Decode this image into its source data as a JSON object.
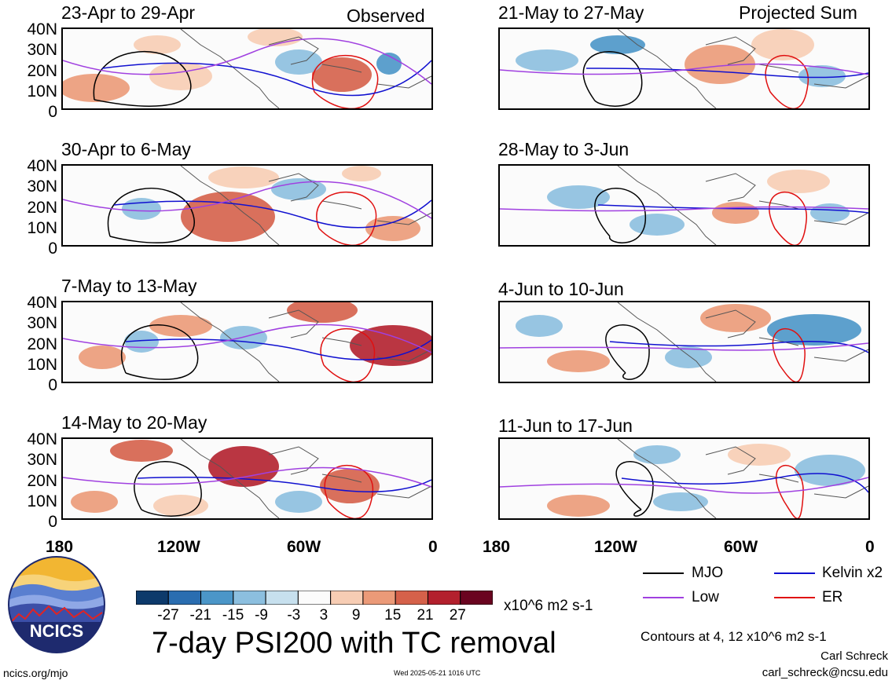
{
  "header": {
    "observed_label": "Observed",
    "projected_label": "Projected Sum"
  },
  "panels_left": [
    {
      "title": "23-Apr to 29-Apr"
    },
    {
      "title": "30-Apr to 6-May"
    },
    {
      "title": "7-May to 13-May"
    },
    {
      "title": "14-May to 20-May"
    }
  ],
  "panels_right": [
    {
      "title": "21-May to 27-May"
    },
    {
      "title": "28-May to 3-Jun"
    },
    {
      "title": "4-Jun to 10-Jun"
    },
    {
      "title": "11-Jun to 17-Jun"
    }
  ],
  "y_ticks": [
    "40N",
    "30N",
    "20N",
    "10N",
    "0"
  ],
  "x_ticks": [
    "180",
    "120W",
    "60W",
    "0"
  ],
  "colorbar": {
    "labels": [
      "-27",
      "-21",
      "-15",
      "-9",
      "-3",
      "3",
      "9",
      "15",
      "21",
      "27"
    ],
    "colors": [
      "#0d3a6b",
      "#2a6db0",
      "#4b96c8",
      "#8cbfdf",
      "#c7e0ee",
      "#fbfbfb",
      "#f7cdb4",
      "#eb9a78",
      "#d5614a",
      "#b3202d",
      "#6a0420"
    ],
    "units": "x10^6 m2 s-1"
  },
  "main_title": "7-day PSI200 with TC removal",
  "legend": [
    {
      "label": "MJO",
      "color": "#000000"
    },
    {
      "label": "Kelvin x2",
      "color": "#1010d0"
    },
    {
      "label": "Low",
      "color": "#a040e0"
    },
    {
      "label": "ER",
      "color": "#e01010"
    }
  ],
  "contour_note": "Contours at 4, 12 x10^6 m2 s-1",
  "author": "Carl Schreck",
  "email": "carl_schreck@ncsu.edu",
  "site": "ncics.org/mjo",
  "timestamp": "Wed 2025-05-21 1016 UTC",
  "logo_text": "NCICS"
}
